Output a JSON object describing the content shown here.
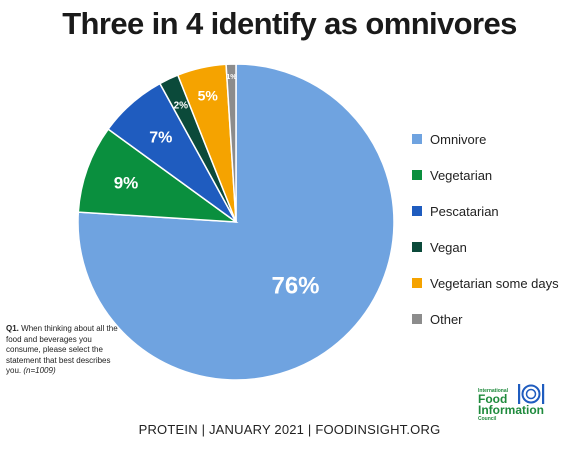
{
  "title": "Three in 4 identify as omnivores",
  "chart_data": {
    "type": "pie",
    "slices": [
      {
        "label": "Omnivore",
        "value": 76,
        "display": "76%",
        "color": "#6fa3e0"
      },
      {
        "label": "Vegetarian",
        "value": 9,
        "display": "9%",
        "color": "#0a8f3e"
      },
      {
        "label": "Pescatarian",
        "value": 7,
        "display": "7%",
        "color": "#1f5cbf"
      },
      {
        "label": "Vegan",
        "value": 2,
        "display": "2%",
        "color": "#0b4a3a"
      },
      {
        "label": "Vegetarian some days",
        "value": 5,
        "display": "5%",
        "color": "#f5a300"
      },
      {
        "label": "Other",
        "value": 1,
        "display": "1%",
        "color": "#8c8c8c"
      }
    ],
    "legend_position": "right"
  },
  "question": {
    "label": "Q1.",
    "text": "When thinking about all the food and beverages you consume, please select the statement that best describes you.",
    "n": "(n=1009)"
  },
  "footer": "PROTEIN | JANUARY 2021 | FOODINSIGHT.ORG",
  "logo": {
    "line1": "International",
    "line2": "Food",
    "line3": "Information",
    "line4": "Council",
    "icon": "plate-fork-knife-icon",
    "color": "#1e8a3c",
    "icon_color": "#1f5cbf"
  }
}
